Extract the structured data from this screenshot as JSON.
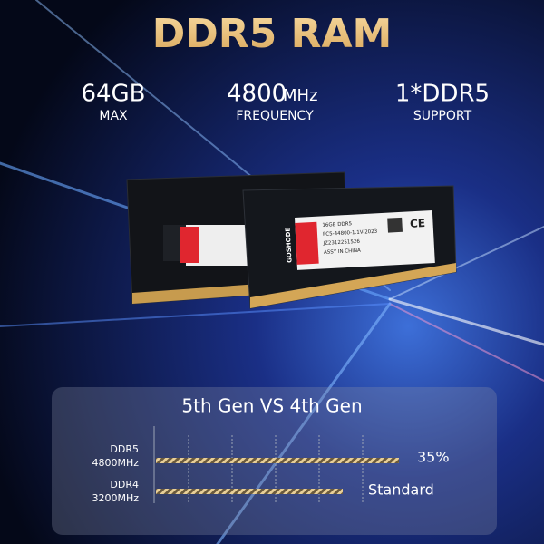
{
  "header": {
    "title": "DDR5 RAM"
  },
  "specs": [
    {
      "value": "64GB",
      "label": "MAX"
    },
    {
      "value": "4800",
      "unit": "MHz",
      "label": "FREQUENCY"
    },
    {
      "value": "1*DDR5",
      "label": "SUPPORT"
    }
  ],
  "module_label": {
    "brand": "GOSHODE",
    "lines": [
      "16GB DDR5",
      "PC5-44800-1.1V-2023",
      "JZ2312251526",
      "ASSY IN CHINA"
    ]
  },
  "comparison": {
    "title": "5th Gen VS 4th Gen",
    "rows": [
      {
        "name": "DDR5",
        "speed": "4800MHz",
        "result": "35%"
      },
      {
        "name": "DDR4",
        "speed": "3200MHz",
        "result": "Standard"
      }
    ]
  }
}
